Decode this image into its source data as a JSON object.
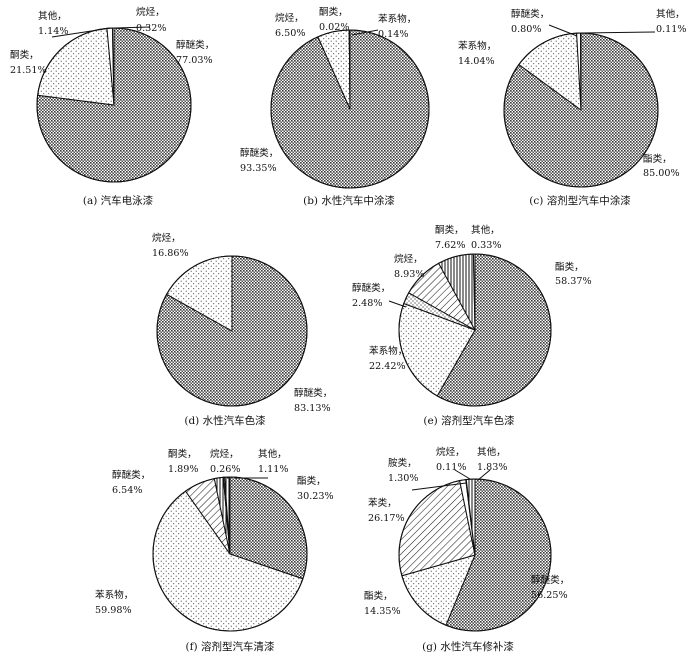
{
  "chart_data": [
    {
      "id": "a",
      "type": "pie",
      "title": "(a)  汽车电泳漆",
      "slices": [
        {
          "label": "醇醚类，",
          "value": 77.03,
          "pct": "77.03%",
          "pattern": "dense"
        },
        {
          "label": "酮类，",
          "value": 21.51,
          "pct": "21.51%",
          "pattern": "dots"
        },
        {
          "label": "其他，",
          "value": 1.14,
          "pct": "1.14%",
          "pattern": "white"
        },
        {
          "label": "烷烃，",
          "value": 0.32,
          "pct": "0.32%",
          "pattern": "white"
        }
      ]
    },
    {
      "id": "b",
      "type": "pie",
      "title": "(b)  水性汽车中涂漆",
      "slices": [
        {
          "label": "醇醚类，",
          "value": 93.35,
          "pct": "93.35%",
          "pattern": "dense"
        },
        {
          "label": "烷烃，",
          "value": 6.5,
          "pct": "6.50%",
          "pattern": "dots"
        },
        {
          "label": "酮类，",
          "value": 0.02,
          "pct": "0.02%",
          "pattern": "white"
        },
        {
          "label": "苯系物，",
          "value": 0.14,
          "pct": "0.14%",
          "pattern": "white"
        }
      ]
    },
    {
      "id": "c",
      "type": "pie",
      "title": "(c)  溶剂型汽车中涂漆",
      "slices": [
        {
          "label": "酯类，",
          "value": 85.0,
          "pct": "85.00%",
          "pattern": "dense"
        },
        {
          "label": "苯系物，",
          "value": 14.04,
          "pct": "14.04%",
          "pattern": "dots"
        },
        {
          "label": "醇醚类，",
          "value": 0.8,
          "pct": "0.80%",
          "pattern": "white"
        },
        {
          "label": "其他，",
          "value": 0.11,
          "pct": "0.11%",
          "pattern": "white"
        }
      ]
    },
    {
      "id": "d",
      "type": "pie",
      "title": "(d)  水性汽车色漆",
      "slices": [
        {
          "label": "醇醚类，",
          "value": 83.13,
          "pct": "83.13%",
          "pattern": "dense"
        },
        {
          "label": "烷烃，",
          "value": 16.86,
          "pct": "16.86%",
          "pattern": "dots"
        }
      ]
    },
    {
      "id": "e",
      "type": "pie",
      "title": "(e)  溶剂型汽车色漆",
      "slices": [
        {
          "label": "酯类，",
          "value": 58.37,
          "pct": "58.37%",
          "pattern": "dense"
        },
        {
          "label": "苯系物，",
          "value": 22.42,
          "pct": "22.42%",
          "pattern": "dots"
        },
        {
          "label": "醇醚类，",
          "value": 2.48,
          "pct": "2.48%",
          "pattern": "sparse"
        },
        {
          "label": "烷烃，",
          "value": 8.93,
          "pct": "8.93%",
          "pattern": "hatch"
        },
        {
          "label": "酮类，",
          "value": 7.62,
          "pct": "7.62%",
          "pattern": "vstripe"
        },
        {
          "label": "其他，",
          "value": 0.33,
          "pct": "0.33%",
          "pattern": "white"
        }
      ]
    },
    {
      "id": "f",
      "type": "pie",
      "title": "(f)  溶剂型汽车清漆",
      "slices": [
        {
          "label": "酯类，",
          "value": 30.23,
          "pct": "30.23%",
          "pattern": "dense"
        },
        {
          "label": "苯系物，",
          "value": 59.98,
          "pct": "59.98%",
          "pattern": "dots"
        },
        {
          "label": "醇醚类，",
          "value": 6.54,
          "pct": "6.54%",
          "pattern": "hatch"
        },
        {
          "label": "酮类，",
          "value": 1.89,
          "pct": "1.89%",
          "pattern": "vstripe"
        },
        {
          "label": "烷烃，",
          "value": 0.26,
          "pct": "0.26%",
          "pattern": "white"
        },
        {
          "label": "其他，",
          "value": 1.11,
          "pct": "1.11%",
          "pattern": "vstripe"
        }
      ]
    },
    {
      "id": "g",
      "type": "pie",
      "title": "(g)  水性汽车修补漆",
      "slices": [
        {
          "label": "醇醚类，",
          "value": 56.25,
          "pct": "56.25%",
          "pattern": "dense"
        },
        {
          "label": "酯类，",
          "value": 14.35,
          "pct": "14.35%",
          "pattern": "dots"
        },
        {
          "label": "苯类，",
          "value": 26.17,
          "pct": "26.17%",
          "pattern": "hatch"
        },
        {
          "label": "胺类，",
          "value": 1.3,
          "pct": "1.30%",
          "pattern": "white"
        },
        {
          "label": "烷烃，",
          "value": 0.11,
          "pct": "0.11%",
          "pattern": "white"
        },
        {
          "label": "其他，",
          "value": 1.83,
          "pct": "1.83%",
          "pattern": "vstripe"
        }
      ]
    }
  ]
}
